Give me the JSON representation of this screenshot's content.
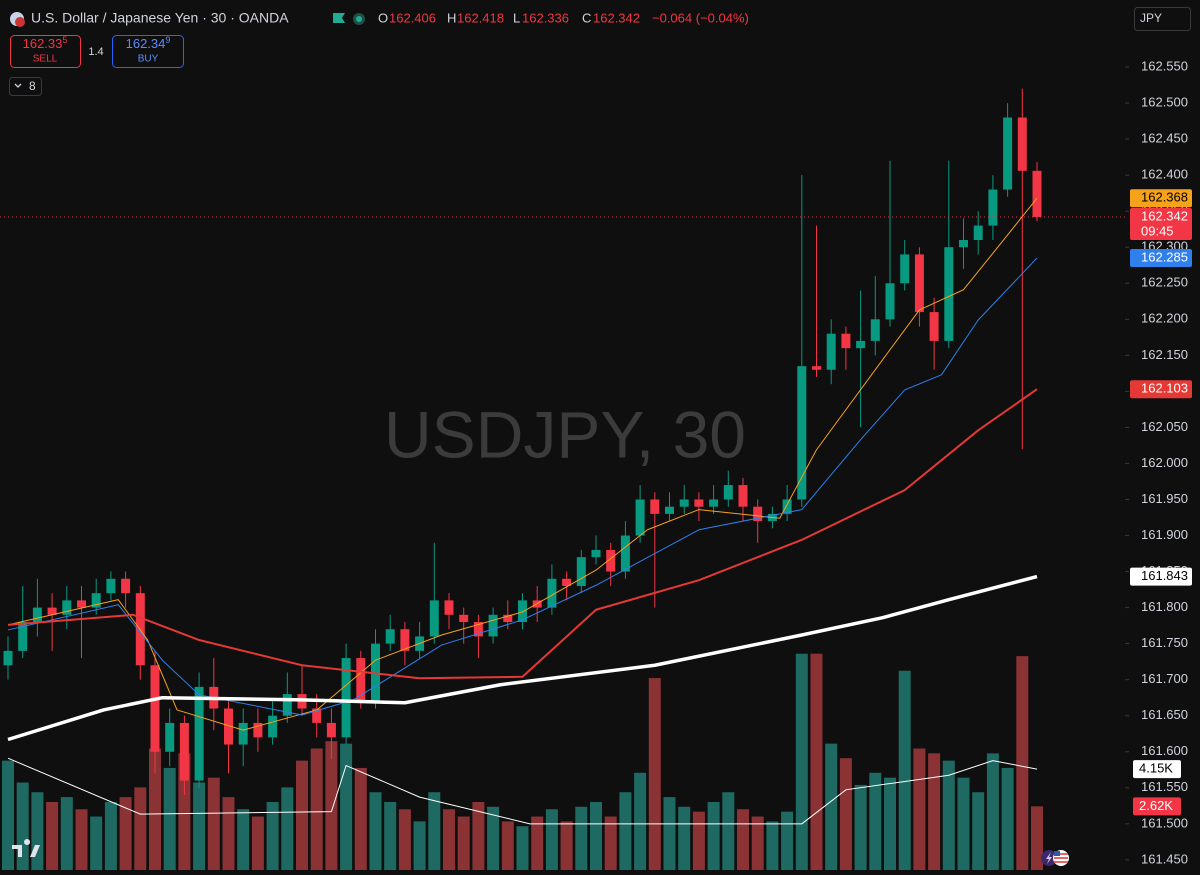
{
  "header": {
    "title": "U.S. Dollar / Japanese Yen · 30 · OANDA",
    "ohlc_letters": [
      "O",
      "H",
      "L",
      "C"
    ],
    "change_label": "−0.064 (−0.04%)",
    "sell_price": "162.33",
    "sell_pip": "5",
    "sell_label": "SELL",
    "spread": "1.4",
    "buy_price": "162.34",
    "buy_pip": "9",
    "buy_label": "BUY",
    "indicator_count": "8",
    "currency": "JPY",
    "watermark": "USDJPY, 30",
    "countdown": "09:45"
  },
  "chart_data": {
    "type": "candlestick",
    "up_color": "#089981",
    "down_color": "#f23645",
    "volume_up_color": "#1e6a62",
    "volume_down_color": "#8a3234",
    "ylim": [
      161.429,
      162.643
    ],
    "yticks": [
      {
        "value": 161.45,
        "label": "161.450"
      },
      {
        "value": 161.5,
        "label": "161.500"
      },
      {
        "value": 161.55,
        "label": "161.550"
      },
      {
        "value": 161.6,
        "label": "161.600"
      },
      {
        "value": 161.65,
        "label": "161.650"
      },
      {
        "value": 161.7,
        "label": "161.700"
      },
      {
        "value": 161.75,
        "label": "161.750"
      },
      {
        "value": 161.8,
        "label": "161.800"
      },
      {
        "value": 161.85,
        "label": "161.850"
      },
      {
        "value": 161.9,
        "label": "161.900"
      },
      {
        "value": 161.95,
        "label": "161.950"
      },
      {
        "value": 162.0,
        "label": "162.000"
      },
      {
        "value": 162.05,
        "label": "162.050"
      },
      {
        "value": 162.1,
        "label": "162.100"
      },
      {
        "value": 162.15,
        "label": "162.150"
      },
      {
        "value": 162.2,
        "label": "162.200"
      },
      {
        "value": 162.25,
        "label": "162.250"
      },
      {
        "value": 162.3,
        "label": "162.300"
      },
      {
        "value": 162.35,
        "label": "162.350"
      },
      {
        "value": 162.4,
        "label": "162.400"
      },
      {
        "value": 162.45,
        "label": "162.450"
      },
      {
        "value": 162.5,
        "label": "162.500"
      },
      {
        "value": 162.55,
        "label": "162.550"
      }
    ],
    "open": [
      161.72,
      161.74,
      161.78,
      161.8,
      161.79,
      161.81,
      161.8,
      161.82,
      161.84,
      161.82,
      161.72,
      161.6,
      161.64,
      161.56,
      161.69,
      161.66,
      161.61,
      161.64,
      161.62,
      161.65,
      161.68,
      161.66,
      161.64,
      161.62,
      161.73,
      161.67,
      161.75,
      161.77,
      161.74,
      161.76,
      161.81,
      161.79,
      161.78,
      161.76,
      161.79,
      161.78,
      161.81,
      161.8,
      161.84,
      161.83,
      161.87,
      161.88,
      161.85,
      161.9,
      161.95,
      161.93,
      161.94,
      161.95,
      161.94,
      161.95,
      161.97,
      161.94,
      161.92,
      161.93,
      161.95,
      162.135,
      162.13,
      162.18,
      162.16,
      162.17,
      162.2,
      162.25,
      162.29,
      162.21,
      162.17,
      162.3,
      162.31,
      162.33,
      162.38,
      162.48,
      162.406
    ],
    "high": [
      161.76,
      161.83,
      161.84,
      161.82,
      161.83,
      161.83,
      161.84,
      161.85,
      161.85,
      161.83,
      161.74,
      161.66,
      161.65,
      161.71,
      161.73,
      161.67,
      161.66,
      161.66,
      161.67,
      161.71,
      161.72,
      161.68,
      161.66,
      161.75,
      161.74,
      161.77,
      161.79,
      161.78,
      161.78,
      161.89,
      161.82,
      161.8,
      161.79,
      161.8,
      161.81,
      161.82,
      161.83,
      161.86,
      161.85,
      161.88,
      161.9,
      161.89,
      161.92,
      161.97,
      161.96,
      161.96,
      161.97,
      161.96,
      161.97,
      161.99,
      161.98,
      161.95,
      161.94,
      161.97,
      162.4,
      162.33,
      162.2,
      162.19,
      162.24,
      162.26,
      162.42,
      162.31,
      162.3,
      162.23,
      162.42,
      162.34,
      162.35,
      162.4,
      162.5,
      162.52,
      162.418
    ],
    "low": [
      161.7,
      161.73,
      161.76,
      161.74,
      161.77,
      161.73,
      161.79,
      161.81,
      161.8,
      161.7,
      161.57,
      161.58,
      161.54,
      161.55,
      161.63,
      161.57,
      161.58,
      161.6,
      161.61,
      161.64,
      161.65,
      161.62,
      161.59,
      161.61,
      161.66,
      161.66,
      161.74,
      161.72,
      161.73,
      161.75,
      161.77,
      161.75,
      161.73,
      161.75,
      161.77,
      161.77,
      161.78,
      161.79,
      161.81,
      161.82,
      161.86,
      161.83,
      161.84,
      161.89,
      161.8,
      161.92,
      161.93,
      161.92,
      161.93,
      161.94,
      161.92,
      161.89,
      161.91,
      161.92,
      161.94,
      162.12,
      162.11,
      162.13,
      162.05,
      162.15,
      162.19,
      162.24,
      162.19,
      162.13,
      162.16,
      162.27,
      162.29,
      162.31,
      162.37,
      162.02,
      162.336
    ],
    "close": [
      161.74,
      161.78,
      161.8,
      161.79,
      161.81,
      161.8,
      161.82,
      161.84,
      161.82,
      161.72,
      161.6,
      161.64,
      161.56,
      161.69,
      161.66,
      161.61,
      161.64,
      161.62,
      161.65,
      161.68,
      161.66,
      161.64,
      161.62,
      161.73,
      161.67,
      161.75,
      161.77,
      161.74,
      161.76,
      161.81,
      161.79,
      161.78,
      161.76,
      161.79,
      161.78,
      161.81,
      161.8,
      161.84,
      161.83,
      161.87,
      161.88,
      161.85,
      161.9,
      161.95,
      161.93,
      161.94,
      161.95,
      161.94,
      161.95,
      161.97,
      161.94,
      161.92,
      161.93,
      161.95,
      162.135,
      162.13,
      162.18,
      162.16,
      162.17,
      162.2,
      162.25,
      162.29,
      162.21,
      162.17,
      162.3,
      162.31,
      162.33,
      162.38,
      162.48,
      162.406,
      162.342
    ],
    "volume": [
      4500,
      3600,
      3200,
      2800,
      3000,
      2500,
      2200,
      2800,
      3000,
      3400,
      5000,
      4200,
      4800,
      3600,
      3800,
      3000,
      2500,
      2200,
      2800,
      3400,
      4500,
      5000,
      5300,
      5200,
      4200,
      3200,
      2800,
      2500,
      2000,
      3200,
      2500,
      2200,
      2800,
      2600,
      2000,
      1800,
      2200,
      2500,
      2000,
      2600,
      2800,
      2200,
      3200,
      4000,
      7900,
      3000,
      2600,
      2400,
      2800,
      3200,
      2500,
      2200,
      2000,
      2400,
      8900,
      8900,
      5200,
      4600,
      3500,
      4000,
      3800,
      8200,
      5000,
      4800,
      4500,
      3800,
      3200,
      4800,
      4200,
      8800,
      2620
    ],
    "volume_last_label": "2.62K",
    "y2lim": [
      0,
      35800
    ],
    "series": [
      {
        "color": "#f7a21b",
        "width": 1,
        "label_text": "#000000",
        "x": [
          0,
          7.5,
          9.5,
          11.5,
          16,
          21,
          25,
          29.5,
          35,
          40,
          43.5,
          47,
          52.5,
          55,
          59.5,
          62,
          65,
          68,
          70
        ],
        "values": [
          161.776,
          161.811,
          161.755,
          161.658,
          161.63,
          161.658,
          161.727,
          161.762,
          161.794,
          161.852,
          161.908,
          161.936,
          161.924,
          162.019,
          162.144,
          162.213,
          162.241,
          162.317,
          162.368
        ]
      },
      {
        "color": "#2f80ed",
        "width": 1,
        "label_text": "#ffffff",
        "x": [
          0,
          7.5,
          10.5,
          13,
          20,
          23.5,
          29.5,
          35,
          40,
          47,
          54,
          58,
          61,
          63.5,
          66,
          70
        ],
        "values": [
          161.769,
          161.804,
          161.727,
          161.679,
          161.651,
          161.672,
          161.748,
          161.783,
          161.831,
          161.908,
          161.936,
          162.033,
          162.102,
          162.123,
          162.199,
          162.285
        ]
      },
      {
        "color": "#e53935",
        "width": 2,
        "label_text": "#ffffff",
        "x": [
          0,
          8.5,
          13,
          20,
          28,
          35,
          40,
          47,
          54,
          61,
          66,
          70
        ],
        "values": [
          161.776,
          161.79,
          161.755,
          161.72,
          161.702,
          161.704,
          161.797,
          161.838,
          161.894,
          161.963,
          162.046,
          162.103
        ]
      },
      {
        "color": "#ffffff",
        "width": 3.5,
        "label_text": "#000000",
        "x": [
          0,
          6.5,
          10.5,
          20,
          27,
          33.5,
          44,
          54,
          59.5,
          64,
          70
        ],
        "values": [
          161.617,
          161.658,
          161.675,
          161.672,
          161.668,
          161.693,
          161.72,
          161.762,
          161.786,
          161.811,
          161.843
        ]
      }
    ],
    "volume_ma": {
      "color": "#ffffff",
      "x": [
        0,
        9,
        22,
        23,
        28,
        35.5,
        54,
        57,
        64,
        67,
        70
      ],
      "values": [
        4600,
        2300,
        2400,
        4300,
        3000,
        1900,
        1900,
        3300,
        3900,
        4500,
        4150
      ],
      "last_label": "4.15K"
    }
  }
}
